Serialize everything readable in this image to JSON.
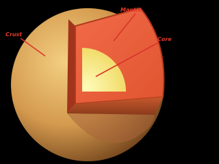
{
  "labels": [
    "Crust",
    "Mantle",
    "Core"
  ]
}
